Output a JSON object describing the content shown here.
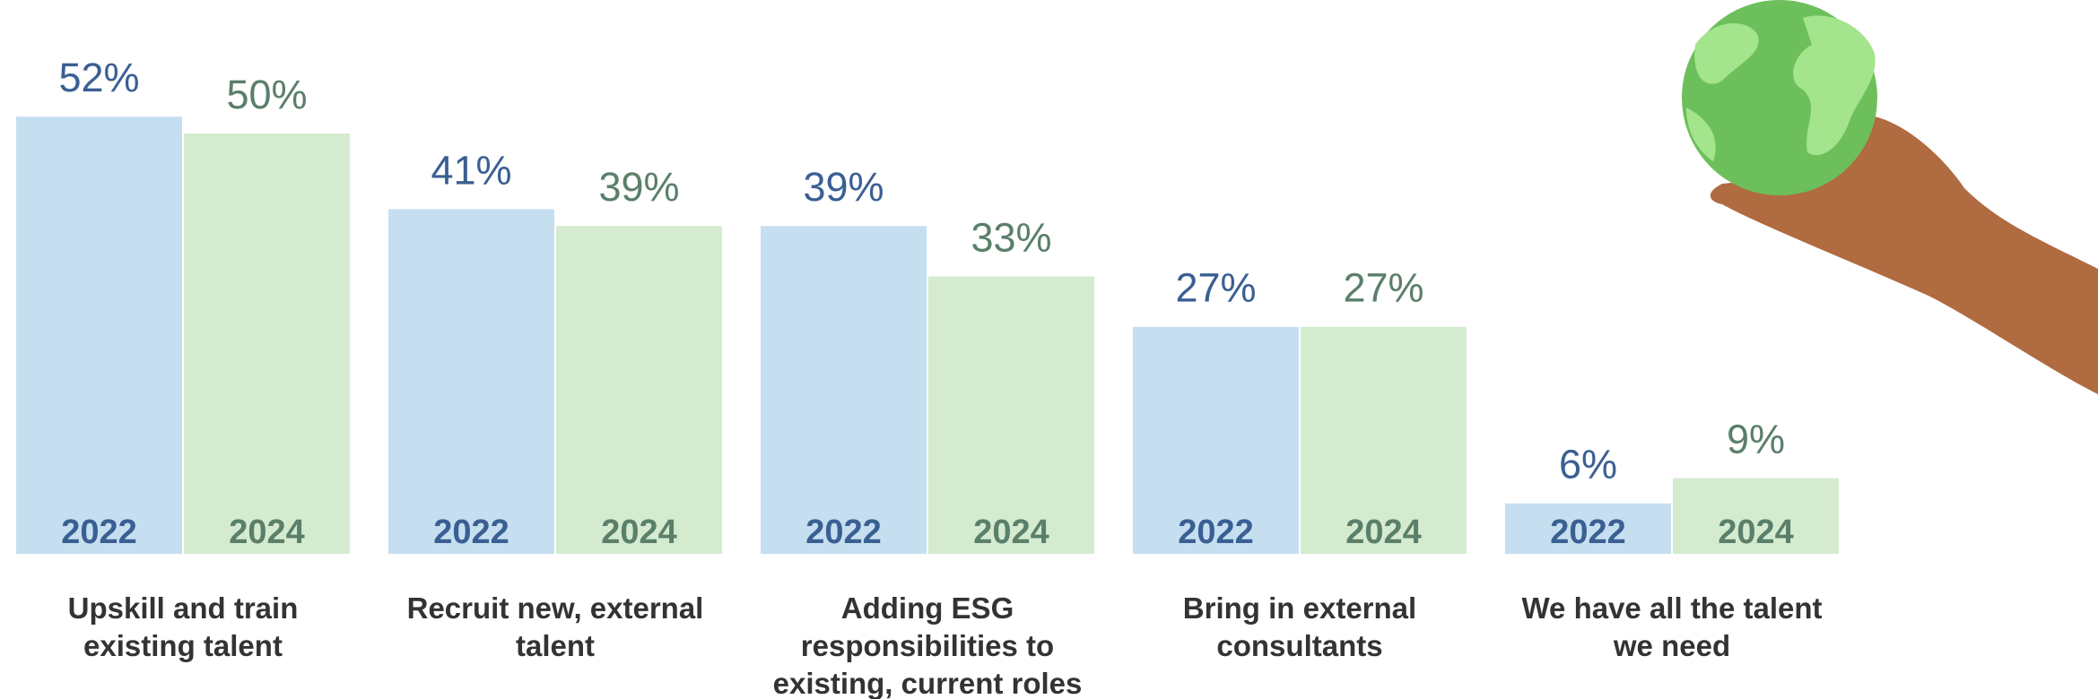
{
  "chart_data": {
    "type": "bar",
    "categories": [
      "Upskill and train existing talent",
      "Recruit new, external talent",
      "Adding ESG responsibilities to existing, current roles",
      "Bring in external consultants",
      "We have all the talent we need"
    ],
    "series": [
      {
        "name": "2022",
        "color": "#c5dff0",
        "label_color": "#3a5f93",
        "values": [
          52,
          41,
          39,
          27,
          6
        ],
        "value_labels": [
          "52%",
          "41%",
          "39%",
          "27%",
          "6%"
        ]
      },
      {
        "name": "2024",
        "color": "#d4ebcf",
        "label_color": "#5a7f6a",
        "values": [
          50,
          39,
          33,
          27,
          9
        ],
        "value_labels": [
          "50%",
          "39%",
          "33%",
          "27%",
          "9%"
        ]
      }
    ]
  }
}
